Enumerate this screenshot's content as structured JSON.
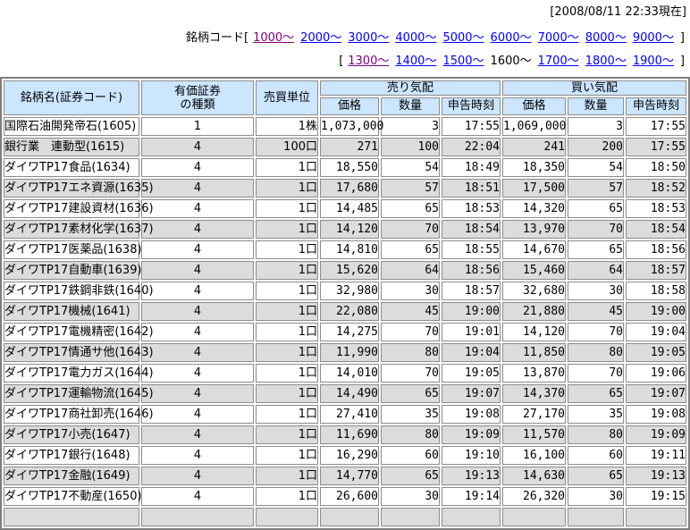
{
  "meta": {
    "timestamp": "[2008/08/11 22:33現在]"
  },
  "nav": {
    "prefix": "銘柄コード",
    "line1": {
      "open": "[",
      "links": [
        {
          "label": "1000〜",
          "state": "visited"
        },
        {
          "label": "2000〜",
          "state": "link"
        },
        {
          "label": "3000〜",
          "state": "link"
        },
        {
          "label": "4000〜",
          "state": "link"
        },
        {
          "label": "5000〜",
          "state": "link"
        },
        {
          "label": "6000〜",
          "state": "link"
        },
        {
          "label": "7000〜",
          "state": "link"
        },
        {
          "label": "8000〜",
          "state": "link"
        },
        {
          "label": "9000〜",
          "state": "link"
        }
      ],
      "close": "]"
    },
    "line2": {
      "open": "[",
      "links": [
        {
          "label": "1300〜",
          "state": "visited"
        },
        {
          "label": "1400〜",
          "state": "link"
        },
        {
          "label": "1500〜",
          "state": "link"
        },
        {
          "label": "1600〜",
          "state": "current"
        },
        {
          "label": "1700〜",
          "state": "link"
        },
        {
          "label": "1800〜",
          "state": "link"
        },
        {
          "label": "1900〜",
          "state": "link"
        }
      ],
      "close": "]"
    }
  },
  "table": {
    "headers": {
      "name": "銘柄名(証券コード)",
      "type_line1": "有価証券",
      "type_line2": "の種類",
      "unit": "売買単位",
      "sell_group": "売り気配",
      "buy_group": "買い気配",
      "price": "価格",
      "qty": "数量",
      "time": "申告時刻"
    },
    "rows": [
      [
        "国際石油開発帝石(1605)",
        "1",
        "1株",
        "1,073,000",
        "3",
        "17:55",
        "1,069,000",
        "3",
        "17:55"
      ],
      [
        "銀行業　連動型(1615)",
        "4",
        "100口",
        "271",
        "100",
        "22:04",
        "241",
        "200",
        "17:55"
      ],
      [
        "ダイワTP17食品(1634)",
        "4",
        "1口",
        "18,550",
        "54",
        "18:49",
        "18,350",
        "54",
        "18:50"
      ],
      [
        "ダイワTP17エネ資源(1635)",
        "4",
        "1口",
        "17,680",
        "57",
        "18:51",
        "17,500",
        "57",
        "18:52"
      ],
      [
        "ダイワTP17建設資材(1636)",
        "4",
        "1口",
        "14,485",
        "65",
        "18:53",
        "14,320",
        "65",
        "18:53"
      ],
      [
        "ダイワTP17素材化学(1637)",
        "4",
        "1口",
        "14,120",
        "70",
        "18:54",
        "13,970",
        "70",
        "18:54"
      ],
      [
        "ダイワTP17医薬品(1638)",
        "4",
        "1口",
        "14,810",
        "65",
        "18:55",
        "14,670",
        "65",
        "18:56"
      ],
      [
        "ダイワTP17自動車(1639)",
        "4",
        "1口",
        "15,620",
        "64",
        "18:56",
        "15,460",
        "64",
        "18:57"
      ],
      [
        "ダイワTP17鉄鋼非鉄(1640)",
        "4",
        "1口",
        "32,980",
        "30",
        "18:57",
        "32,680",
        "30",
        "18:58"
      ],
      [
        "ダイワTP17機械(1641)",
        "4",
        "1口",
        "22,080",
        "45",
        "19:00",
        "21,880",
        "45",
        "19:00"
      ],
      [
        "ダイワTP17電機精密(1642)",
        "4",
        "1口",
        "14,275",
        "70",
        "19:01",
        "14,120",
        "70",
        "19:04"
      ],
      [
        "ダイワTP17情通サ他(1643)",
        "4",
        "1口",
        "11,990",
        "80",
        "19:04",
        "11,850",
        "80",
        "19:05"
      ],
      [
        "ダイワTP17電力ガス(1644)",
        "4",
        "1口",
        "14,010",
        "70",
        "19:05",
        "13,870",
        "70",
        "19:06"
      ],
      [
        "ダイワTP17運輸物流(1645)",
        "4",
        "1口",
        "14,490",
        "65",
        "19:07",
        "14,370",
        "65",
        "19:07"
      ],
      [
        "ダイワTP17商社卸売(1646)",
        "4",
        "1口",
        "27,410",
        "35",
        "19:08",
        "27,170",
        "35",
        "19:08"
      ],
      [
        "ダイワTP17小売(1647)",
        "4",
        "1口",
        "11,690",
        "80",
        "19:09",
        "11,570",
        "80",
        "19:09"
      ],
      [
        "ダイワTP17銀行(1648)",
        "4",
        "1口",
        "16,290",
        "60",
        "19:10",
        "16,100",
        "60",
        "19:11"
      ],
      [
        "ダイワTP17金融(1649)",
        "4",
        "1口",
        "14,770",
        "65",
        "19:13",
        "14,630",
        "65",
        "19:13"
      ],
      [
        "ダイワTP17不動産(1650)",
        "4",
        "1口",
        "26,600",
        "30",
        "19:14",
        "26,320",
        "30",
        "19:15"
      ]
    ],
    "partial_row": [
      "",
      "",
      "",
      "",
      "",
      "",
      "",
      "",
      ""
    ]
  },
  "colors": {
    "header_bg": "#cce6ff",
    "row_alt_bg": "#dcdcdc",
    "link_blue": "#0000ff",
    "link_visited": "#800080",
    "border_gray": "#8c8c8c"
  }
}
